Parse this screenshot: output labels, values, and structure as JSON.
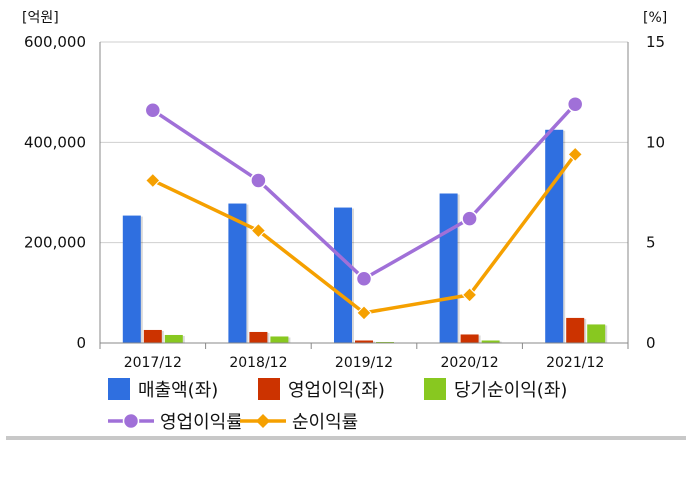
{
  "chart_data": {
    "type": "bar",
    "categories": [
      "2017/12",
      "2018/12",
      "2019/12",
      "2020/12",
      "2021/12"
    ],
    "y_left": {
      "unit": "[억원]",
      "range": [
        0,
        600000
      ],
      "ticks": [
        0,
        200000,
        400000,
        600000
      ],
      "tick_labels": [
        "0",
        "200,000",
        "400,000",
        "600,000"
      ]
    },
    "y_right": {
      "unit": "[%]",
      "range": [
        0,
        15
      ],
      "ticks": [
        0,
        5,
        10,
        15
      ],
      "tick_labels": [
        "0",
        "5",
        "10",
        "15"
      ]
    },
    "grid": "horizontal",
    "legend_position": "bottom",
    "series": [
      {
        "name": "매출액(좌)",
        "kind": "bar",
        "axis": "left",
        "color": "#2f6fe0",
        "values": [
          254000,
          278000,
          270000,
          298000,
          425000
        ]
      },
      {
        "name": "영업이익(좌)",
        "kind": "bar",
        "axis": "left",
        "color": "#cc3300",
        "values": [
          26000,
          22000,
          5000,
          17000,
          50000
        ]
      },
      {
        "name": "당기순이익(좌)",
        "kind": "bar",
        "axis": "left",
        "color": "#88c820",
        "values": [
          16000,
          13000,
          2000,
          5000,
          37000
        ]
      },
      {
        "name": "영업이익률",
        "kind": "line",
        "axis": "right",
        "color": "#a070d8",
        "marker": "circle",
        "values": [
          11.6,
          8.1,
          3.2,
          6.2,
          11.9
        ]
      },
      {
        "name": "순이익률",
        "kind": "line",
        "axis": "right",
        "color": "#f5a000",
        "marker": "diamond",
        "values": [
          8.1,
          5.6,
          1.5,
          2.4,
          9.4
        ]
      }
    ]
  }
}
